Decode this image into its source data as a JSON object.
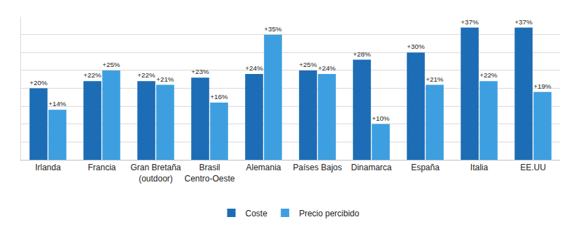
{
  "chart_data": {
    "type": "bar",
    "categories": [
      "Irlanda",
      "Francia",
      "Gran Bretaña\n(outdoor)",
      "Brasil\nCentro-Oeste",
      "Alemania",
      "Países Bajos",
      "Dinamarca",
      "España",
      "Italia",
      "EE.UU"
    ],
    "series": [
      {
        "name": "Coste",
        "color": "#1c6db5",
        "values": [
          20,
          22,
          22,
          23,
          24,
          25,
          28,
          30,
          37,
          37
        ],
        "value_labels": [
          "+20%",
          "+22%",
          "+22%",
          "+23%",
          "+24%",
          "+25%",
          "+28%",
          "+30%",
          "+37%",
          "+37%"
        ]
      },
      {
        "name": "Precio percibido",
        "color": "#3d9fe0",
        "values": [
          14,
          25,
          21,
          16,
          35,
          24,
          10,
          21,
          22,
          19
        ],
        "value_labels": [
          "+14%",
          "+25%",
          "+21%",
          "+16%",
          "+35%",
          "+24%",
          "+10%",
          "+21%",
          "+22%",
          "+19%"
        ]
      }
    ],
    "ylim": [
      0,
      40
    ],
    "yticks": [
      0,
      5,
      10,
      15,
      20,
      25,
      30,
      35,
      40
    ],
    "grid": true,
    "legend": "bottom",
    "data_labels": true,
    "tick_labels": "x"
  }
}
